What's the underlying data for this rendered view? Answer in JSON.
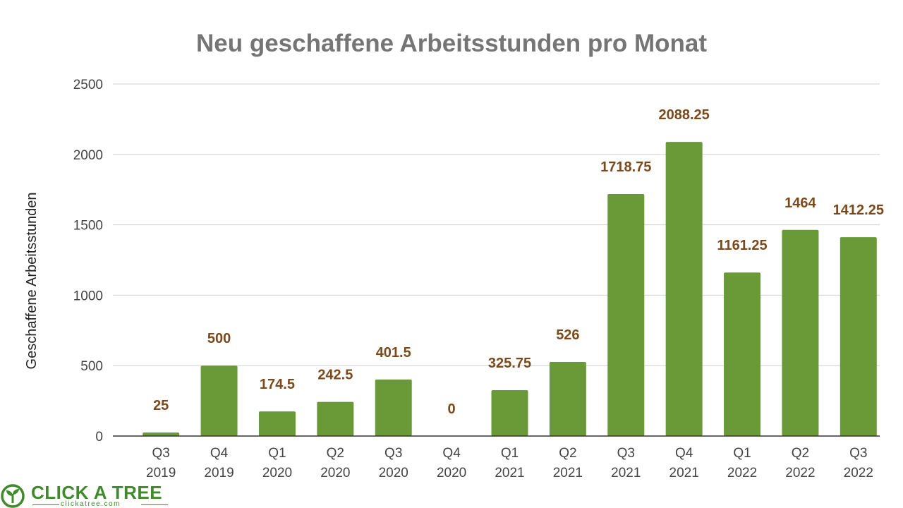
{
  "chart_data": {
    "type": "bar",
    "title": "Neu geschaffene Arbeitsstunden pro Monat",
    "xlabel": "",
    "ylabel": "Geschaffene Arbeitsstunden",
    "ylim": [
      0,
      2500
    ],
    "yticks": [
      0,
      500,
      1000,
      1500,
      2000,
      2500
    ],
    "grid": true,
    "legend": "none",
    "categories": [
      [
        "Q3",
        "2019"
      ],
      [
        "Q4",
        "2019"
      ],
      [
        "Q1",
        "2020"
      ],
      [
        "Q2",
        "2020"
      ],
      [
        "Q3",
        "2020"
      ],
      [
        "Q4",
        "2020"
      ],
      [
        "Q1",
        "2021"
      ],
      [
        "Q2",
        "2021"
      ],
      [
        "Q3",
        "2021"
      ],
      [
        "Q4",
        "2021"
      ],
      [
        "Q1",
        "2022"
      ],
      [
        "Q2",
        "2022"
      ],
      [
        "Q3",
        "2022"
      ]
    ],
    "values": [
      25,
      500,
      174.5,
      242.5,
      401.5,
      0,
      325.75,
      526,
      1718.75,
      2088.25,
      1161.25,
      1464,
      1412.25
    ],
    "data_labels": [
      "25",
      "500",
      "174.5",
      "242.5",
      "401.5",
      "0",
      "325.75",
      "526",
      "1718.75",
      "2088.25",
      "1161.25",
      "1464",
      "1412.25"
    ],
    "colors": {
      "bar": "#6a9a38",
      "data_label": "#7a4a1c",
      "title": "#757575"
    }
  },
  "logo": {
    "name": "CLICK A TREE",
    "url": "clickatree.com",
    "icon": "tree-leaf-circle-icon",
    "color": "#3f8a2a"
  }
}
